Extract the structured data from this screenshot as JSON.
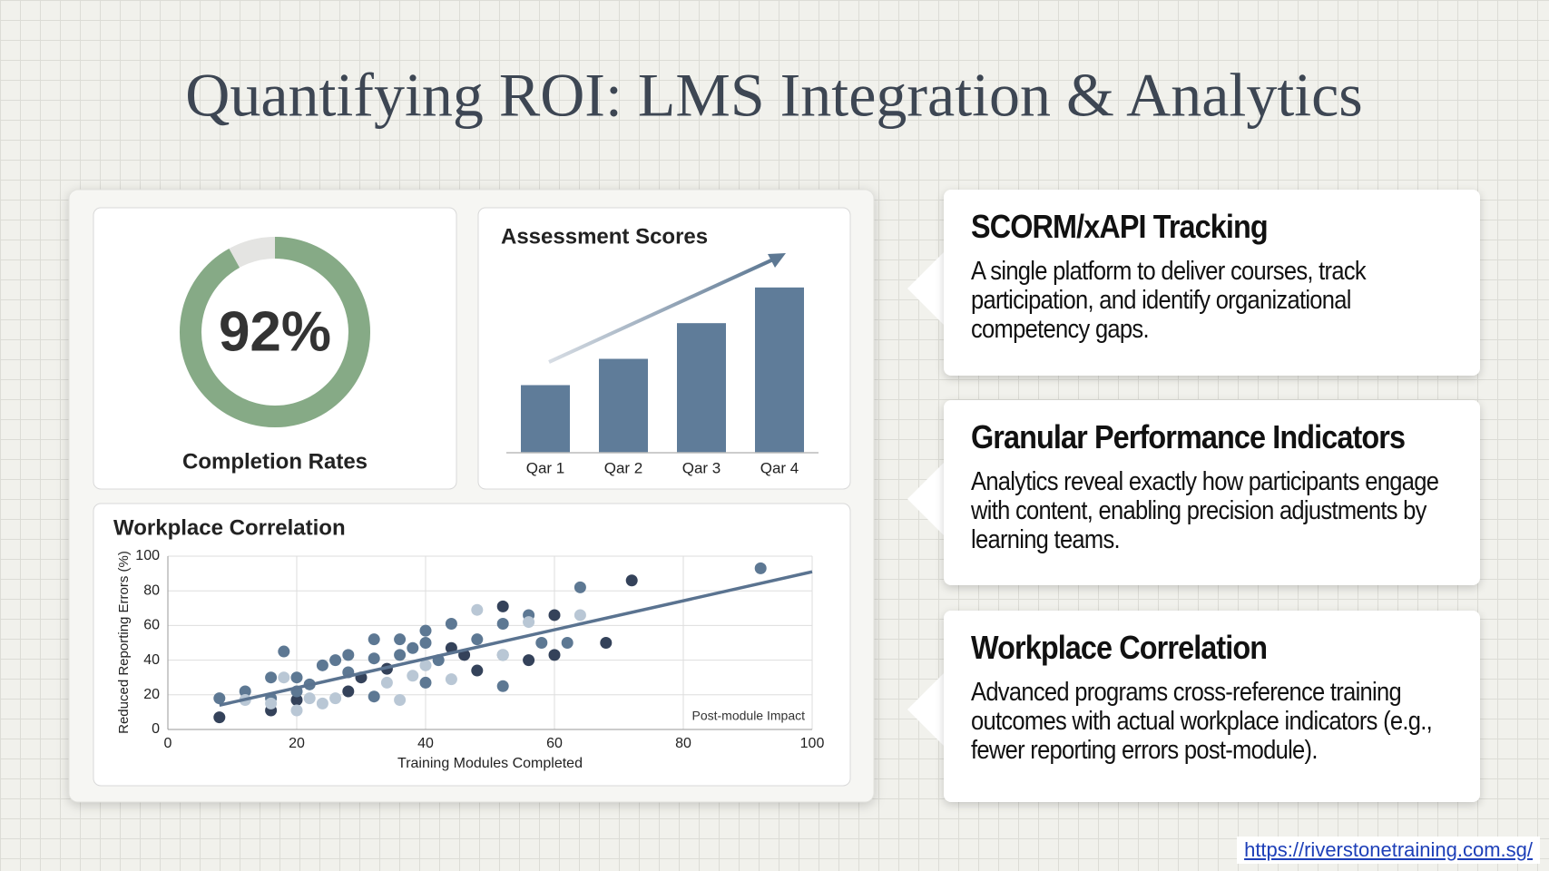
{
  "title": "Quantifying ROI: LMS Integration & Analytics",
  "cards": [
    {
      "title": "SCORM/xAPI Tracking",
      "text": "A single platform to deliver courses, track participation, and identify organizational competency gaps."
    },
    {
      "title": "Granular Performance Indicators",
      "text": "Analytics reveal exactly how participants engage with content, enabling precision adjustments by learning teams."
    },
    {
      "title": "Workplace Correlation",
      "text": "Advanced programs cross-reference training outcomes with actual workplace indicators (e.g., fewer reporting errors post-module)."
    }
  ],
  "url": "https://riverstonetraining.com.sg/",
  "chart_data": [
    {
      "type": "donut",
      "label": "Completion Rates",
      "values": [
        92
      ],
      "value_labels": [
        "92%"
      ],
      "ylim": [
        0,
        100
      ],
      "color": "#86aa86",
      "track_color": "#e4e4e2"
    },
    {
      "type": "bar",
      "title": "Assessment Scores",
      "categories": [
        "Qar 1",
        "Qar 2",
        "Qar 3",
        "Qar 4"
      ],
      "values": [
        36,
        50,
        69,
        88
      ],
      "ylim": [
        0,
        100
      ],
      "color": "#5f7c99"
    },
    {
      "type": "scatter",
      "title": "Workplace Correlation",
      "x_label": "Training Modules Completed",
      "y_label": "Reduced Reporting Errors (%)",
      "annotation": "Post-module Impact",
      "xlim": [
        0,
        100
      ],
      "xticks": [
        0,
        20,
        40,
        60,
        80,
        100
      ],
      "ylim": [
        0,
        100
      ],
      "yticks": [
        0,
        20,
        40,
        60,
        80,
        100
      ],
      "grid": true,
      "series": [
        {
          "color": "#34425a",
          "x": [
            8,
            16,
            20,
            28,
            30,
            34,
            44,
            46,
            48,
            52,
            56,
            60,
            60,
            68,
            72
          ],
          "values": [
            7,
            11,
            17,
            22,
            30,
            35,
            47,
            43,
            34,
            71,
            40,
            66,
            43,
            50,
            86
          ]
        },
        {
          "color": "#5d7893",
          "x": [
            8,
            12,
            16,
            16,
            18,
            20,
            20,
            22,
            24,
            26,
            28,
            28,
            32,
            32,
            32,
            36,
            36,
            38,
            40,
            40,
            40,
            42,
            44,
            48,
            52,
            52,
            52,
            56,
            58,
            62,
            64,
            92
          ],
          "values": [
            18,
            22,
            30,
            18,
            45,
            30,
            22,
            26,
            37,
            40,
            43,
            33,
            52,
            41,
            19,
            52,
            43,
            47,
            57,
            50,
            27,
            40,
            61,
            52,
            61,
            43,
            25,
            66,
            50,
            50,
            82,
            93
          ]
        },
        {
          "color": "#b9c7d5",
          "x": [
            12,
            16,
            18,
            20,
            22,
            24,
            26,
            34,
            36,
            38,
            40,
            44,
            48,
            52,
            56,
            64
          ],
          "values": [
            17,
            15,
            30,
            11,
            18,
            15,
            18,
            27,
            17,
            31,
            37,
            29,
            69,
            43,
            62,
            66
          ]
        }
      ],
      "trend": {
        "x": [
          8,
          100
        ],
        "values": [
          14,
          91
        ],
        "color": "#5a7390"
      }
    }
  ]
}
